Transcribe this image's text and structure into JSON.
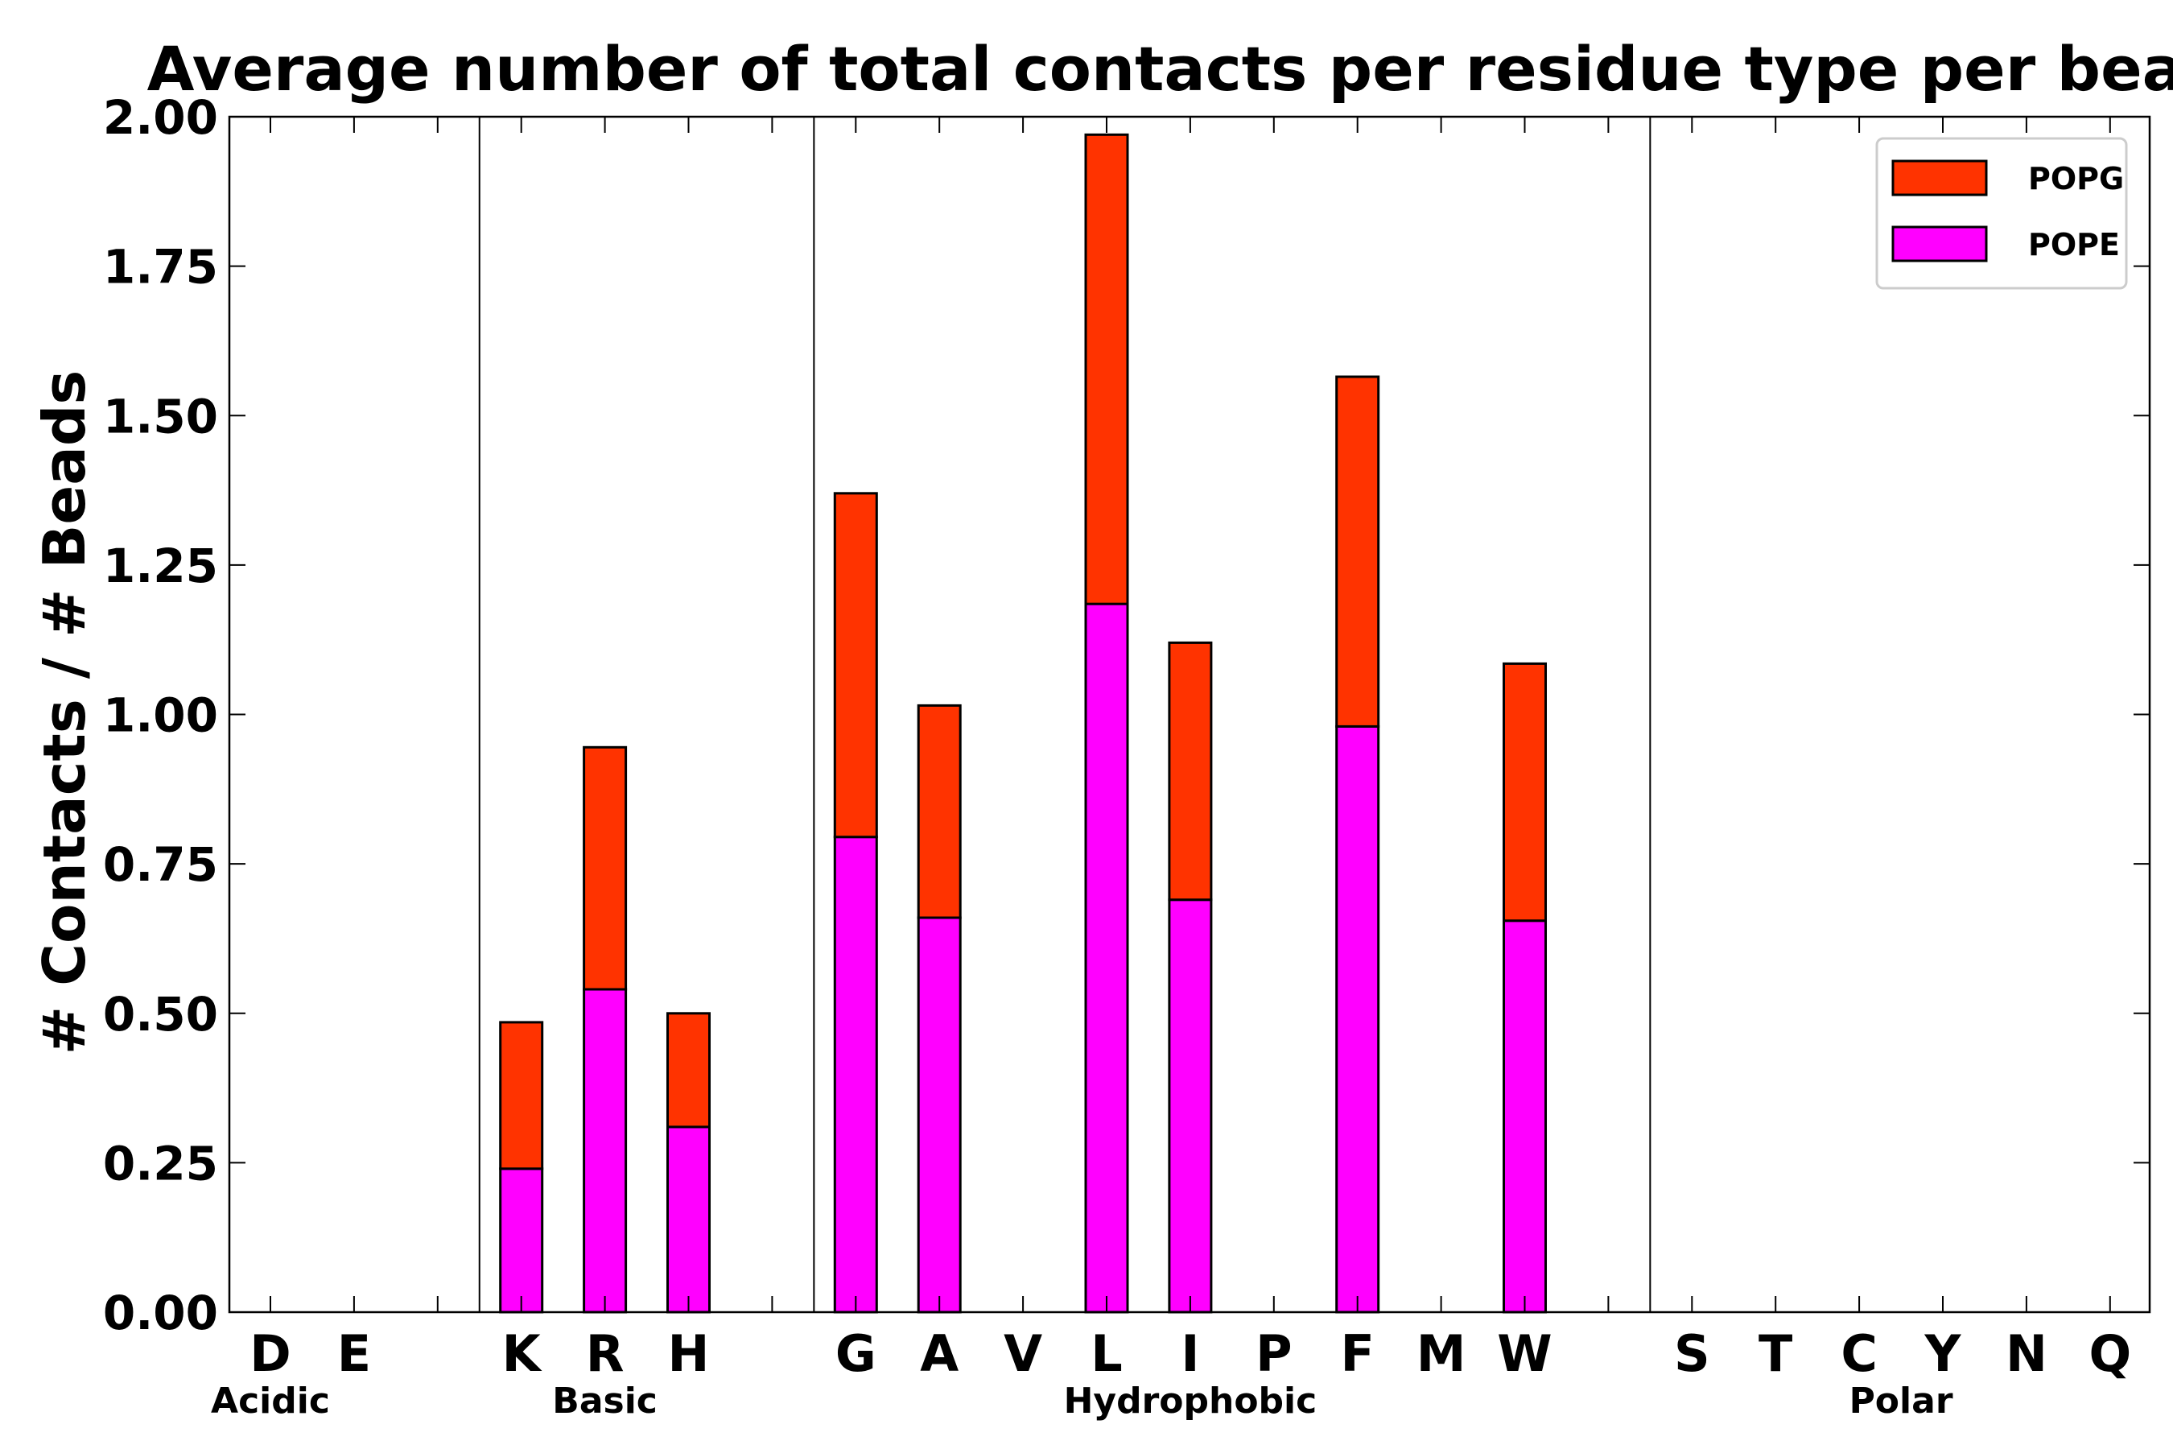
{
  "chart_data": {
    "type": "bar",
    "stacked": true,
    "title": "Average number of total contacts per residue type per bead",
    "xlabel": "",
    "ylabel": "# Contacts / # Beads",
    "ylim": [
      0,
      2.0
    ],
    "yticks": [
      "0.00",
      "0.25",
      "0.50",
      "0.75",
      "1.00",
      "1.25",
      "1.50",
      "1.75",
      "2.00"
    ],
    "categories": [
      "D",
      "E",
      "",
      "K",
      "R",
      "H",
      "",
      "G",
      "A",
      "V",
      "L",
      "I",
      "P",
      "F",
      "M",
      "W",
      "",
      "S",
      "T",
      "C",
      "Y",
      "N",
      "Q"
    ],
    "groups": [
      {
        "name": "Acidic",
        "first": 0,
        "last": 0
      },
      {
        "name": "Basic",
        "first": 3,
        "last": 5
      },
      {
        "name": "Hydrophobic",
        "first": 7,
        "last": 15
      },
      {
        "name": "Polar",
        "first": 17,
        "last": 22
      }
    ],
    "separators_after": [
      2,
      6,
      16
    ],
    "series": [
      {
        "name": "POPE",
        "color": "#ff00ff",
        "values": [
          0,
          0,
          0,
          0.24,
          0.54,
          0.31,
          0,
          0.795,
          0.66,
          0,
          1.185,
          0.69,
          0,
          0.98,
          0,
          0.655,
          0,
          0,
          0,
          0,
          0,
          0,
          0
        ]
      },
      {
        "name": "POPG",
        "color": "#ff3300",
        "values": [
          0,
          0,
          0,
          0.245,
          0.405,
          0.19,
          0,
          0.575,
          0.355,
          0,
          0.785,
          0.43,
          0,
          0.585,
          0,
          0.43,
          0,
          0,
          0,
          0,
          0,
          0,
          0
        ]
      }
    ],
    "legend": {
      "position": "top-right",
      "order": [
        "POPG",
        "POPE"
      ]
    },
    "grid": false
  }
}
